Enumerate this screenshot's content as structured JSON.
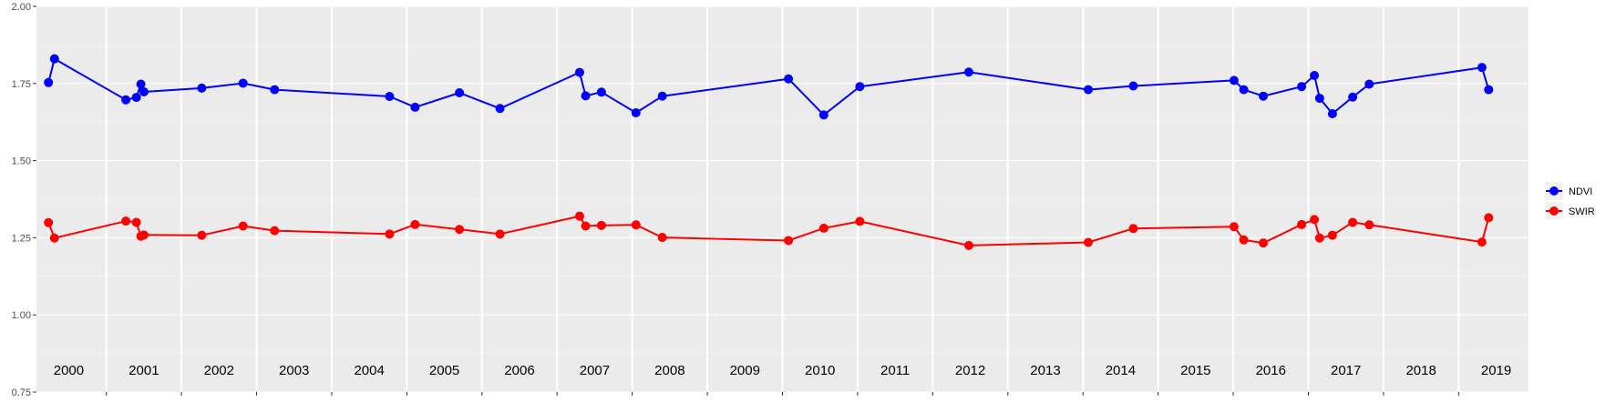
{
  "chart_data": {
    "type": "line",
    "title": "",
    "xlabel": "",
    "ylabel": "",
    "ylim": [
      0.75,
      2.0
    ],
    "xlim": [
      1999.57,
      2019.43
    ],
    "y_ticks": [
      "0.75",
      "1.00",
      "1.25",
      "1.50",
      "1.75",
      "2.00"
    ],
    "year_labels": [
      "2000",
      "2001",
      "2002",
      "2003",
      "2004",
      "2005",
      "2006",
      "2007",
      "2008",
      "2009",
      "2010",
      "2011",
      "2012",
      "2013",
      "2014",
      "2015",
      "2016",
      "2017",
      "2018",
      "2019"
    ],
    "grid": true,
    "legend_position": "right",
    "colors": {
      "panel": "#ebebeb",
      "grid_major": "#ffffff",
      "NDVI": "#0000ff",
      "SWIR": "#ff0000"
    },
    "series": [
      {
        "name": "NDVI",
        "x": [
          1999.73,
          1999.81,
          2000.76,
          2000.9,
          2000.96,
          2001.0,
          2001.77,
          2002.32,
          2002.74,
          2004.27,
          2004.61,
          2005.2,
          2005.74,
          2006.8,
          2006.88,
          2007.09,
          2007.55,
          2007.9,
          2009.58,
          2010.05,
          2010.53,
          2011.98,
          2013.57,
          2014.17,
          2015.51,
          2015.64,
          2015.9,
          2016.41,
          2016.58,
          2016.65,
          2016.82,
          2017.09,
          2017.31,
          2018.81,
          2018.9
        ],
        "values": [
          1.753,
          1.83,
          1.697,
          1.705,
          1.748,
          1.723,
          1.735,
          1.751,
          1.73,
          1.708,
          1.673,
          1.72,
          1.669,
          1.786,
          1.71,
          1.722,
          1.655,
          1.709,
          1.765,
          1.648,
          1.74,
          1.787,
          1.73,
          1.742,
          1.76,
          1.73,
          1.709,
          1.74,
          1.776,
          1.702,
          1.652,
          1.706,
          1.748,
          1.802,
          1.73
        ]
      },
      {
        "name": "SWIR",
        "x": [
          1999.73,
          1999.81,
          2000.76,
          2000.9,
          2000.96,
          2001.0,
          2001.77,
          2002.32,
          2002.74,
          2004.27,
          2004.61,
          2005.2,
          2005.74,
          2006.8,
          2006.88,
          2007.09,
          2007.55,
          2007.9,
          2009.58,
          2010.05,
          2010.53,
          2011.98,
          2013.57,
          2014.17,
          2015.51,
          2015.64,
          2015.9,
          2016.41,
          2016.58,
          2016.65,
          2016.82,
          2017.09,
          2017.31,
          2018.81,
          2018.9
        ],
        "values": [
          1.299,
          1.249,
          1.304,
          1.3,
          1.255,
          1.259,
          1.258,
          1.288,
          1.273,
          1.262,
          1.293,
          1.277,
          1.262,
          1.32,
          1.288,
          1.29,
          1.292,
          1.251,
          1.241,
          1.281,
          1.303,
          1.225,
          1.235,
          1.28,
          1.286,
          1.243,
          1.233,
          1.293,
          1.309,
          1.249,
          1.258,
          1.3,
          1.292,
          1.236,
          1.315
        ]
      }
    ]
  }
}
